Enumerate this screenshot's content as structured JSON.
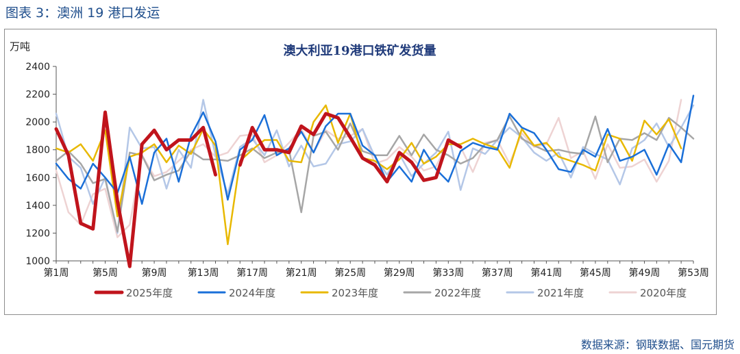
{
  "figure_title": "图表 3：澳洲 19 港口发运",
  "source": "数据来源：钢联数据、国元期货",
  "chart_data": {
    "type": "line",
    "title": "澳大利亚19港口铁矿发货量",
    "ylabel": "万吨",
    "xlabel": "",
    "ylim": [
      1000,
      2400
    ],
    "yticks": [
      1000,
      1200,
      1400,
      1600,
      1800,
      2000,
      2200,
      2400
    ],
    "x": [
      1,
      2,
      3,
      4,
      5,
      6,
      7,
      8,
      9,
      10,
      11,
      12,
      13,
      14,
      15,
      16,
      17,
      18,
      19,
      20,
      21,
      22,
      23,
      24,
      25,
      26,
      27,
      28,
      29,
      30,
      31,
      32,
      33,
      34,
      35,
      36,
      37,
      38,
      39,
      40,
      41,
      42,
      43,
      44,
      45,
      46,
      47,
      48,
      49,
      50,
      51,
      52,
      53
    ],
    "xtick_labels": [
      "第1周",
      "第5周",
      "第9周",
      "第13周",
      "第17周",
      "第21周",
      "第25周",
      "第29周",
      "第33周",
      "第37周",
      "第41周",
      "第45周",
      "第49周",
      "第53周"
    ],
    "xtick_weeks": [
      1,
      5,
      9,
      13,
      17,
      21,
      25,
      29,
      33,
      37,
      41,
      45,
      49,
      53
    ],
    "grid": false,
    "legend_position": "bottom",
    "series": [
      {
        "name": "2025年度",
        "color": "#c0141c",
        "width": 5,
        "values": [
          1950,
          1760,
          1270,
          1230,
          2070,
          1430,
          960,
          1840,
          1940,
          1800,
          1870,
          1870,
          1960,
          1620,
          null,
          1690,
          1960,
          1800,
          1800,
          1780,
          1970,
          1910,
          2060,
          2030,
          1890,
          1740,
          1690,
          1570,
          1780,
          1710,
          1580,
          1600,
          1870,
          1820,
          null,
          null,
          null,
          null,
          null,
          null,
          null,
          null,
          null,
          null,
          null,
          null,
          null,
          null,
          null,
          null,
          null,
          null,
          null
        ]
      },
      {
        "name": "2024年度",
        "color": "#1a6fd8",
        "width": 2.5,
        "values": [
          1700,
          1590,
          1520,
          1700,
          1600,
          1490,
          1750,
          1410,
          1780,
          1880,
          1570,
          1900,
          2070,
          1860,
          1440,
          1800,
          1870,
          2050,
          1760,
          1810,
          1930,
          1780,
          1970,
          2060,
          2060,
          1830,
          1760,
          1570,
          1680,
          1570,
          1800,
          1660,
          1570,
          1790,
          1850,
          1820,
          1800,
          2060,
          1960,
          1920,
          1800,
          1660,
          1640,
          1800,
          1750,
          1950,
          1720,
          1750,
          1800,
          1620,
          1840,
          1710,
          2190
        ]
      },
      {
        "name": "2023年度",
        "color": "#e8b800",
        "width": 2.5,
        "values": [
          1810,
          1780,
          1840,
          1720,
          1940,
          1320,
          1750,
          1780,
          1840,
          1710,
          1830,
          1770,
          1950,
          1830,
          1120,
          1720,
          1800,
          1870,
          1870,
          1720,
          1710,
          2000,
          2120,
          1850,
          2060,
          1740,
          1720,
          1660,
          1730,
          1850,
          1700,
          1750,
          1840,
          1840,
          1880,
          1840,
          1810,
          1670,
          1950,
          1830,
          1850,
          1750,
          1720,
          1690,
          1650,
          1910,
          1880,
          1720,
          2010,
          1910,
          2020,
          1810,
          null
        ]
      },
      {
        "name": "2022年度",
        "color": "#a6a6a6",
        "width": 2.5,
        "values": [
          1720,
          1790,
          1700,
          1560,
          1590,
          1210,
          1780,
          1760,
          1580,
          1620,
          1650,
          1790,
          1730,
          1730,
          1720,
          1760,
          1810,
          1740,
          1780,
          1800,
          1350,
          1900,
          1930,
          1800,
          1990,
          1790,
          1760,
          1760,
          1900,
          1760,
          1910,
          1800,
          1760,
          1700,
          1740,
          1840,
          1870,
          2040,
          1880,
          1830,
          1790,
          1800,
          1780,
          1770,
          2040,
          1710,
          1880,
          1870,
          1920,
          1870,
          2030,
          1960,
          1880
        ]
      },
      {
        "name": "2021年度",
        "color": "#b4c7e7",
        "width": 2.5,
        "values": [
          2060,
          1750,
          1670,
          1410,
          1600,
          1200,
          1960,
          1810,
          1820,
          1520,
          1800,
          1670,
          2160,
          1760,
          1480,
          1820,
          1880,
          1760,
          1940,
          1680,
          1830,
          1680,
          1700,
          1840,
          1860,
          1950,
          1750,
          1620,
          1770,
          1610,
          1700,
          1780,
          1930,
          1510,
          1810,
          1770,
          1870,
          1960,
          1890,
          1780,
          1720,
          1780,
          1600,
          1820,
          1770,
          1730,
          1550,
          1810,
          1870,
          1990,
          1820,
          1960,
          2120
        ]
      },
      {
        "name": "2020年度",
        "color": "#eed3d3",
        "width": 2.5,
        "values": [
          1650,
          1350,
          1260,
          1480,
          1520,
          1170,
          1260,
          1760,
          1610,
          1640,
          1720,
          1800,
          1840,
          1750,
          1780,
          1900,
          1910,
          1710,
          1760,
          1850,
          1950,
          1780,
          1940,
          1880,
          1900,
          1950,
          1700,
          1730,
          1820,
          1750,
          1650,
          1680,
          1860,
          1820,
          1640,
          1850,
          1870,
          1700,
          1920,
          1820,
          1840,
          2030,
          1740,
          1790,
          1590,
          1840,
          1670,
          1680,
          1730,
          1570,
          1720,
          2160,
          null
        ]
      }
    ]
  }
}
